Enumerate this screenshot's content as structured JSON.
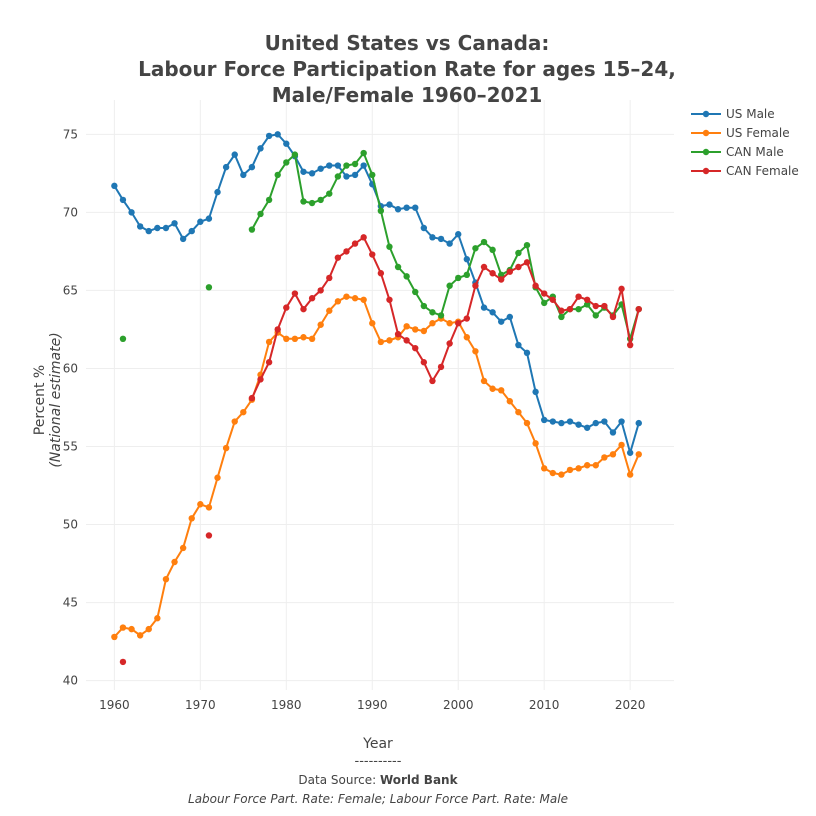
{
  "chart_data": {
    "type": "line",
    "title_lines": [
      "United States vs Canada:",
      "Labour Force Participation Rate for ages 15–24,",
      "Male/Female 1960–2021"
    ],
    "xlabel": "Year",
    "ylabel": "Percent %",
    "ylabel_sub": "(National estimate)",
    "xlim": [
      1956.7,
      2025.1
    ],
    "ylim": [
      39.4,
      77.2
    ],
    "xticks": [
      1960,
      1970,
      1980,
      1990,
      2000,
      2010,
      2020
    ],
    "yticks": [
      40,
      45,
      50,
      55,
      60,
      65,
      70,
      75
    ],
    "grid": true,
    "legend_placement": "top-right outside",
    "x_start": 1960,
    "series": [
      {
        "name": "US Male",
        "color": "#1f77b4",
        "values": [
          71.7,
          70.8,
          70.0,
          69.1,
          68.8,
          69.0,
          69.0,
          69.3,
          68.3,
          68.8,
          69.4,
          69.6,
          71.3,
          72.9,
          73.7,
          72.4,
          72.9,
          74.1,
          74.9,
          75.0,
          74.4,
          73.6,
          72.6,
          72.5,
          72.8,
          73.0,
          73.0,
          72.3,
          72.4,
          73.0,
          71.8,
          70.4,
          70.5,
          70.2,
          70.3,
          70.3,
          69.0,
          68.4,
          68.3,
          68.0,
          68.6,
          67.0,
          65.5,
          63.9,
          63.6,
          63.0,
          63.3,
          61.5,
          61.0,
          58.5,
          56.7,
          56.6,
          56.5,
          56.6,
          56.4,
          56.2,
          56.5,
          56.6,
          55.9,
          56.6,
          54.6,
          56.5
        ]
      },
      {
        "name": "US Female",
        "color": "#ff7f0e",
        "values": [
          42.8,
          43.4,
          43.3,
          42.9,
          43.3,
          44.0,
          46.5,
          47.6,
          48.5,
          50.4,
          51.3,
          51.1,
          53.0,
          54.9,
          56.6,
          57.2,
          58.0,
          59.6,
          61.7,
          62.3,
          61.9,
          61.9,
          62.0,
          61.9,
          62.8,
          63.7,
          64.3,
          64.6,
          64.5,
          64.4,
          62.9,
          61.7,
          61.8,
          62.0,
          62.7,
          62.5,
          62.4,
          62.9,
          63.2,
          62.9,
          63.0,
          62.0,
          61.1,
          59.2,
          58.7,
          58.6,
          57.9,
          57.2,
          56.5,
          55.2,
          53.6,
          53.3,
          53.2,
          53.5,
          53.6,
          53.8,
          53.8,
          54.3,
          54.5,
          55.1,
          53.2,
          54.5
        ]
      },
      {
        "name": "CAN Male",
        "color": "#2ca02c",
        "values": [
          null,
          61.9,
          null,
          null,
          null,
          null,
          null,
          null,
          null,
          null,
          null,
          65.2,
          null,
          null,
          null,
          null,
          68.9,
          69.9,
          70.8,
          72.4,
          73.2,
          73.7,
          70.7,
          70.6,
          70.8,
          71.2,
          72.3,
          73.0,
          73.1,
          73.8,
          72.4,
          70.1,
          67.8,
          66.5,
          65.9,
          64.9,
          64.0,
          63.6,
          63.4,
          65.3,
          65.8,
          66.0,
          67.7,
          68.1,
          67.6,
          66.0,
          66.3,
          67.4,
          67.9,
          65.2,
          64.2,
          64.6,
          63.3,
          63.8,
          63.8,
          64.1,
          63.4,
          63.9,
          63.4,
          64.1,
          61.9,
          63.8
        ]
      },
      {
        "name": "CAN Female",
        "color": "#d62728",
        "values": [
          null,
          41.2,
          null,
          null,
          null,
          null,
          null,
          null,
          null,
          null,
          null,
          49.3,
          null,
          null,
          null,
          null,
          58.1,
          59.3,
          60.4,
          62.5,
          63.9,
          64.8,
          63.8,
          64.5,
          65.0,
          65.8,
          67.1,
          67.5,
          68.0,
          68.4,
          67.3,
          66.1,
          64.4,
          62.2,
          61.8,
          61.3,
          60.4,
          59.2,
          60.1,
          61.6,
          62.9,
          63.2,
          65.3,
          66.5,
          66.1,
          65.7,
          66.2,
          66.5,
          66.8,
          65.3,
          64.8,
          64.4,
          63.7,
          63.8,
          64.6,
          64.4,
          64.0,
          64.0,
          63.3,
          65.1,
          61.5,
          63.8
        ]
      }
    ]
  },
  "footer": {
    "separator": "----------",
    "source_label": "Data Source: ",
    "source_name": "World Bank",
    "indicators": "Labour Force Part. Rate: Female; Labour Force Part. Rate: Male"
  }
}
